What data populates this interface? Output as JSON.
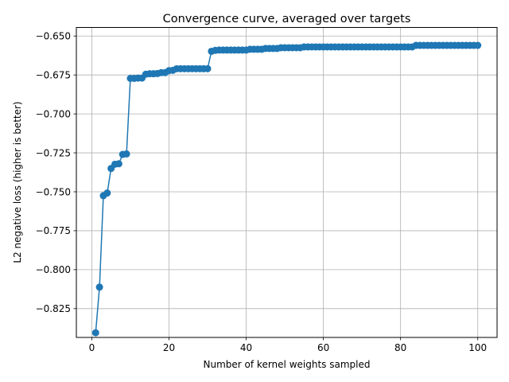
{
  "chart_data": {
    "type": "line",
    "title": "Convergence curve, averaged over targets",
    "xlabel": "Number of kernel weights sampled",
    "ylabel": "L2 negative loss (higher is better)",
    "xlim": [
      -4,
      105
    ],
    "ylim": [
      -0.8435,
      -0.6445
    ],
    "xticks": [
      0,
      20,
      40,
      60,
      80,
      100
    ],
    "yticks": [
      -0.825,
      -0.8,
      -0.775,
      -0.75,
      -0.725,
      -0.7,
      -0.675,
      -0.65
    ],
    "xtick_labels": [
      "0",
      "20",
      "40",
      "60",
      "80",
      "100"
    ],
    "ytick_labels": [
      "−0.825",
      "−0.800",
      "−0.775",
      "−0.750",
      "−0.725",
      "−0.700",
      "−0.675",
      "−0.650"
    ],
    "grid": true,
    "color": "#1f77b4",
    "series": [
      {
        "x": [
          1,
          2,
          3,
          4,
          5,
          6,
          7,
          8,
          9,
          10,
          11,
          12,
          13,
          14,
          15,
          16,
          17,
          18,
          19,
          20,
          21,
          22,
          23,
          24,
          25,
          26,
          27,
          28,
          29,
          30,
          31,
          32,
          33,
          34,
          35,
          36,
          37,
          38,
          39,
          40,
          41,
          42,
          43,
          44,
          45,
          46,
          47,
          48,
          49,
          50,
          51,
          52,
          53,
          54,
          55,
          56,
          57,
          58,
          59,
          60,
          61,
          62,
          63,
          64,
          65,
          66,
          67,
          68,
          69,
          70,
          71,
          72,
          73,
          74,
          75,
          76,
          77,
          78,
          79,
          80,
          81,
          82,
          83,
          84,
          85,
          86,
          87,
          88,
          89,
          90,
          91,
          92,
          93,
          94,
          95,
          96,
          97,
          98,
          99,
          100
        ],
        "values": [
          -0.8405,
          -0.8112,
          -0.7525,
          -0.7508,
          -0.735,
          -0.7323,
          -0.732,
          -0.726,
          -0.7257,
          -0.6772,
          -0.6772,
          -0.677,
          -0.677,
          -0.6745,
          -0.6742,
          -0.6742,
          -0.6741,
          -0.6735,
          -0.6735,
          -0.6722,
          -0.672,
          -0.671,
          -0.671,
          -0.671,
          -0.671,
          -0.671,
          -0.671,
          -0.671,
          -0.671,
          -0.671,
          -0.6598,
          -0.6592,
          -0.659,
          -0.659,
          -0.659,
          -0.659,
          -0.659,
          -0.659,
          -0.659,
          -0.659,
          -0.6585,
          -0.6585,
          -0.6585,
          -0.6585,
          -0.658,
          -0.658,
          -0.658,
          -0.658,
          -0.6575,
          -0.6575,
          -0.6575,
          -0.6575,
          -0.6575,
          -0.6575,
          -0.657,
          -0.657,
          -0.657,
          -0.657,
          -0.657,
          -0.657,
          -0.657,
          -0.657,
          -0.657,
          -0.657,
          -0.657,
          -0.657,
          -0.657,
          -0.657,
          -0.657,
          -0.657,
          -0.657,
          -0.657,
          -0.657,
          -0.657,
          -0.657,
          -0.657,
          -0.657,
          -0.657,
          -0.657,
          -0.657,
          -0.657,
          -0.657,
          -0.657,
          -0.656,
          -0.656,
          -0.656,
          -0.656,
          -0.656,
          -0.656,
          -0.656,
          -0.656,
          -0.656,
          -0.656,
          -0.656,
          -0.656,
          -0.656,
          -0.656,
          -0.656,
          -0.656,
          -0.656
        ]
      }
    ]
  }
}
